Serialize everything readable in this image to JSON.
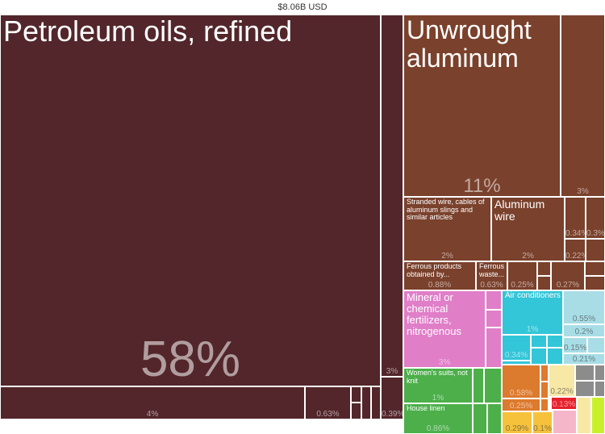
{
  "title": "$8.06B USD",
  "colors": {
    "dark_maroon": "#52262a",
    "brown": "#7a412c",
    "pink": "#e07ec8",
    "cyan": "#32c6d8",
    "light_cyan": "#a8dde6",
    "green": "#4caf4a",
    "orange": "#dc7a2e",
    "yellow": "#f6c23c",
    "light_yellow": "#f7e8a6",
    "red": "#e8202c",
    "gray": "#8c8c8c",
    "lime": "#c8f02a",
    "light_pink": "#f4b6c8"
  },
  "chart_data": {
    "type": "treemap",
    "total": "$8.06B USD",
    "items": [
      {
        "label": "Petroleum oils, refined",
        "pct": "58%",
        "color": "dark_maroon"
      },
      {
        "label": "",
        "pct": "4%",
        "color": "dark_maroon"
      },
      {
        "label": "",
        "pct": "0.63%",
        "color": "dark_maroon"
      },
      {
        "label": "",
        "pct": "3%",
        "color": "dark_maroon"
      },
      {
        "label": "",
        "pct": "0.39%",
        "color": "dark_maroon"
      },
      {
        "label": "Unwrought aluminum",
        "pct": "11%",
        "color": "brown"
      },
      {
        "label": "",
        "pct": "3%",
        "color": "brown"
      },
      {
        "label": "Stranded wire, cables of aluminum slings and similar articles",
        "pct": "2%",
        "color": "brown"
      },
      {
        "label": "Aluminum wire",
        "pct": "2%",
        "color": "brown"
      },
      {
        "label": "",
        "pct": "0.34%",
        "color": "brown"
      },
      {
        "label": "",
        "pct": "0.3%",
        "color": "brown"
      },
      {
        "label": "",
        "pct": "0.22%",
        "color": "brown"
      },
      {
        "label": "Ferrous products obtained by...",
        "pct": "0.88%",
        "color": "brown"
      },
      {
        "label": "Ferrous waste...",
        "pct": "0.63%",
        "color": "brown"
      },
      {
        "label": "",
        "pct": "0.25%",
        "color": "brown"
      },
      {
        "label": "",
        "pct": "0.27%",
        "color": "brown"
      },
      {
        "label": "Mineral or chemical fertilizers, nitrogenous",
        "pct": "3%",
        "color": "pink"
      },
      {
        "label": "Air conditioners",
        "pct": "1%",
        "color": "cyan"
      },
      {
        "label": "",
        "pct": "0.34%",
        "color": "cyan"
      },
      {
        "label": "",
        "pct": "0.55%",
        "color": "light_cyan"
      },
      {
        "label": "",
        "pct": "0.2%",
        "color": "light_cyan"
      },
      {
        "label": "",
        "pct": "0.15%",
        "color": "light_cyan"
      },
      {
        "label": "",
        "pct": "0.21%",
        "color": "light_cyan"
      },
      {
        "label": "Women's suits, not knit",
        "pct": "1%",
        "color": "green"
      },
      {
        "label": "House linen",
        "pct": "0.86%",
        "color": "green"
      },
      {
        "label": "",
        "pct": "0.58%",
        "color": "orange"
      },
      {
        "label": "",
        "pct": "0.25%",
        "color": "orange"
      },
      {
        "label": "",
        "pct": "0.29%",
        "color": "yellow"
      },
      {
        "label": "",
        "pct": "0.1%",
        "color": "yellow"
      },
      {
        "label": "",
        "pct": "0.22%",
        "color": "light_yellow"
      },
      {
        "label": "",
        "pct": "0.13%",
        "color": "red"
      }
    ]
  }
}
